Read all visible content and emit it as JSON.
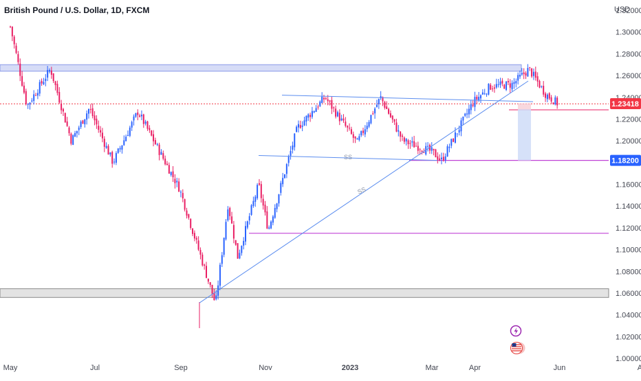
{
  "header": {
    "title": "British Pound / U.S. Dollar, 1D, FXCM",
    "currency": "USD"
  },
  "colors": {
    "up": "#2962ff",
    "down": "#e91e63",
    "trendline": "#5b8def",
    "level": "#c042d6",
    "zone_top_fill": "#d6dcf7",
    "zone_bottom_fill": "#e3e3e3",
    "price_label": "#f23645",
    "target_label": "#2962ff"
  },
  "icons": [
    "lightning-badge-icon",
    "us-flag-badge-icon"
  ],
  "annotations": {
    "ss_label_1": "SS",
    "ss_label_2": "SS"
  },
  "chart_data": {
    "type": "candlestick",
    "symbol": "GBPUSD",
    "timeframe": "1D",
    "x_tick_labels": [
      "May",
      "Jul",
      "Sep",
      "Nov",
      "2023",
      "Mar",
      "Apr",
      "Jun",
      "Aug"
    ],
    "y_ticks": [
      "1.32000",
      "1.30000",
      "1.28000",
      "1.26000",
      "1.24000",
      "1.22000",
      "1.20000",
      "1.18000",
      "1.16000",
      "1.14000",
      "1.12000",
      "1.10000",
      "1.08000",
      "1.06000",
      "1.04000",
      "1.02000",
      "1.00000"
    ],
    "ylim": [
      1.0,
      1.32
    ],
    "current_price": "1.23418",
    "target_price": "1.18200",
    "series_waypoints": [
      {
        "date": "2022-05-01",
        "price": 1.305
      },
      {
        "date": "2022-05-06",
        "price": 1.275
      },
      {
        "date": "2022-05-13",
        "price": 1.232
      },
      {
        "date": "2022-05-30",
        "price": 1.266
      },
      {
        "date": "2022-06-14",
        "price": 1.2
      },
      {
        "date": "2022-06-27",
        "price": 1.23
      },
      {
        "date": "2022-07-14",
        "price": 1.18
      },
      {
        "date": "2022-08-01",
        "price": 1.227
      },
      {
        "date": "2022-08-31",
        "price": 1.156
      },
      {
        "date": "2022-09-26",
        "price": 1.05
      },
      {
        "date": "2022-10-05",
        "price": 1.142
      },
      {
        "date": "2022-10-12",
        "price": 1.093
      },
      {
        "date": "2022-10-27",
        "price": 1.16
      },
      {
        "date": "2022-11-03",
        "price": 1.118
      },
      {
        "date": "2022-11-24",
        "price": 1.212
      },
      {
        "date": "2022-12-14",
        "price": 1.24
      },
      {
        "date": "2023-01-06",
        "price": 1.198
      },
      {
        "date": "2023-01-23",
        "price": 1.24
      },
      {
        "date": "2023-02-08",
        "price": 1.2
      },
      {
        "date": "2023-03-01",
        "price": 1.19
      },
      {
        "date": "2023-03-08",
        "price": 1.182
      },
      {
        "date": "2023-03-31",
        "price": 1.236
      },
      {
        "date": "2023-04-12",
        "price": 1.25
      },
      {
        "date": "2023-04-28",
        "price": 1.252
      },
      {
        "date": "2023-05-10",
        "price": 1.266
      },
      {
        "date": "2023-05-22",
        "price": 1.243
      },
      {
        "date": "2023-05-31",
        "price": 1.234
      }
    ],
    "zones": [
      {
        "name": "supply-zone",
        "from": 1.264,
        "to": 1.27
      },
      {
        "name": "demand-zone",
        "from": 1.056,
        "to": 1.064
      }
    ],
    "levels": [
      {
        "name": "level-1.182",
        "price": 1.182
      },
      {
        "name": "level-1.115",
        "price": 1.115
      },
      {
        "name": "current-price-dotted",
        "price": 1.234
      }
    ],
    "grid": false
  }
}
